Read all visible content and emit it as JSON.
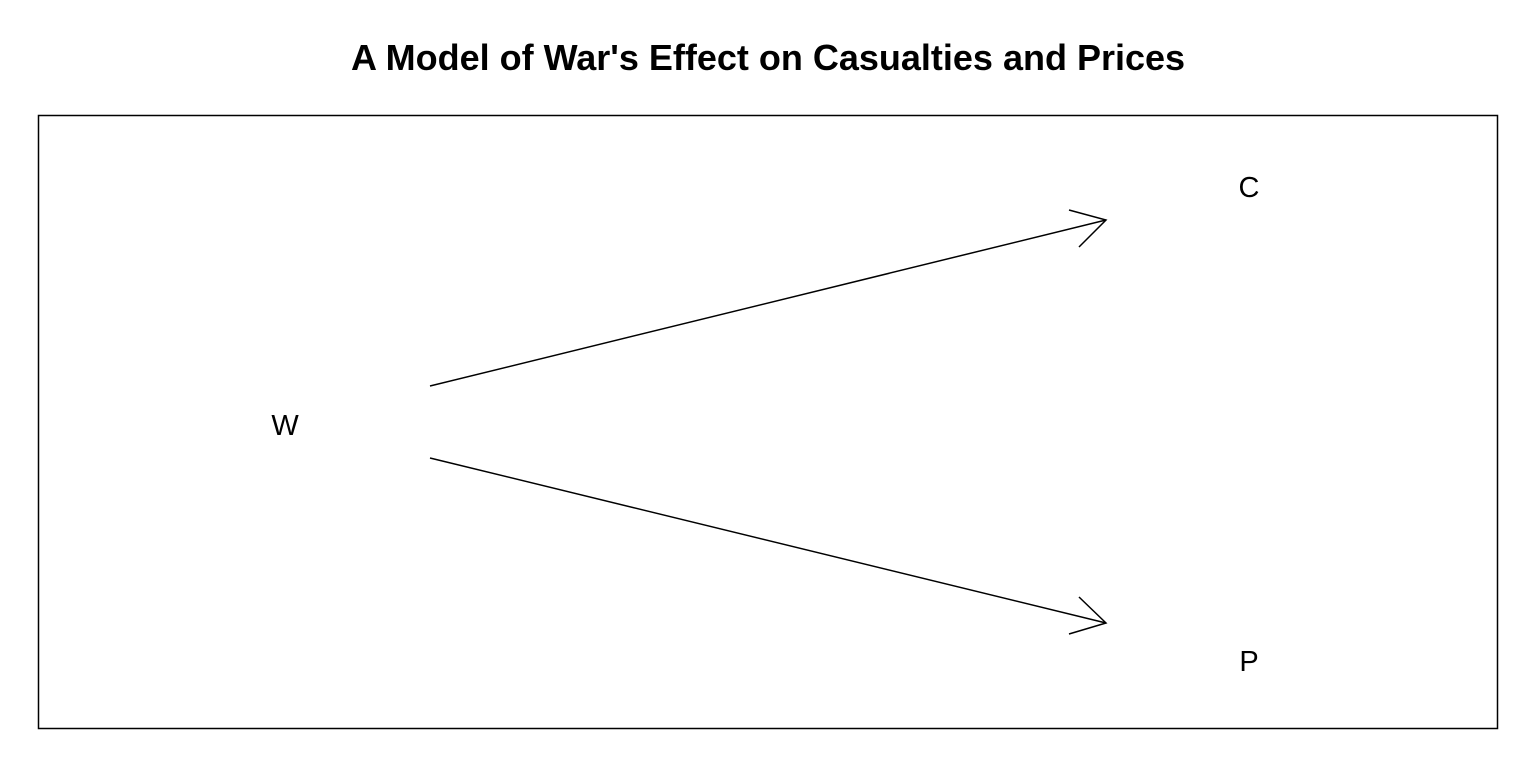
{
  "title": "A Model of War's Effect on Casualties and Prices",
  "nodes": {
    "war": "W",
    "casualties": "C",
    "prices": "P"
  },
  "edges": [
    {
      "from": "W",
      "to": "C"
    },
    {
      "from": "W",
      "to": "P"
    }
  ],
  "colors": {
    "line": "#000000",
    "background": "#ffffff"
  }
}
